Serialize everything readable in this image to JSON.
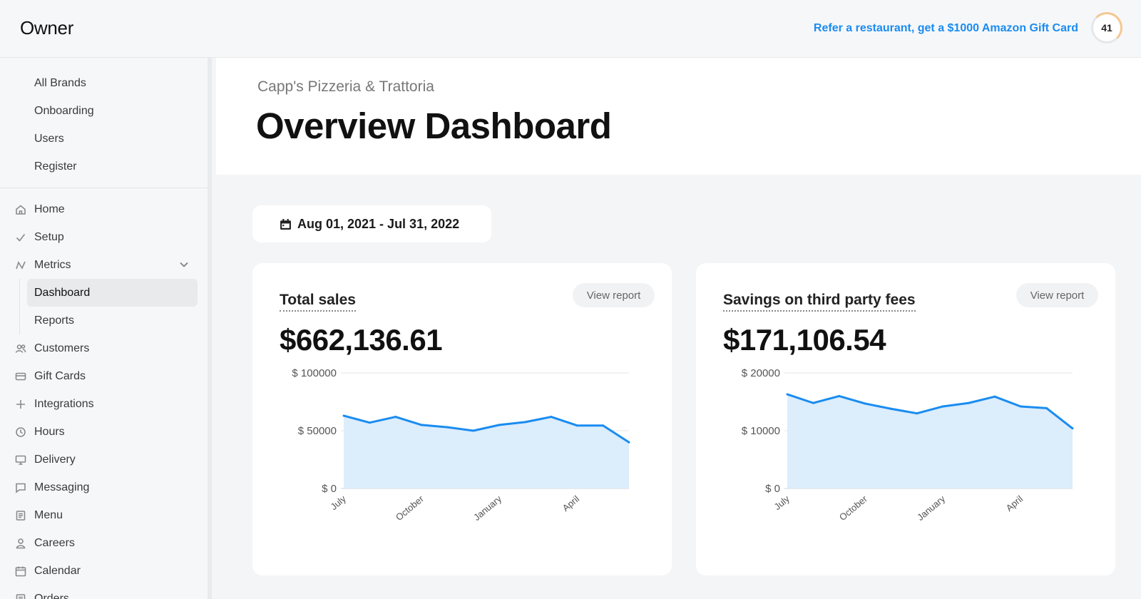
{
  "header": {
    "logo": "Owner",
    "refer_link": "Refer a restaurant, get a $1000 Amazon Gift Card",
    "badge_count": "41"
  },
  "sidebar": {
    "brand_items": [
      "All Brands",
      "Onboarding",
      "Users",
      "Register"
    ],
    "items": [
      {
        "label": "Home",
        "icon": "home-icon"
      },
      {
        "label": "Setup",
        "icon": "check-icon"
      },
      {
        "label": "Metrics",
        "icon": "metrics-icon",
        "expanded": true
      },
      {
        "label": "Dashboard",
        "sub": true,
        "active": true
      },
      {
        "label": "Reports",
        "sub": true
      },
      {
        "label": "Customers",
        "icon": "users-icon"
      },
      {
        "label": "Gift Cards",
        "icon": "credit-card-icon"
      },
      {
        "label": "Integrations",
        "icon": "plus-icon"
      },
      {
        "label": "Hours",
        "icon": "clock-icon"
      },
      {
        "label": "Delivery",
        "icon": "monitor-icon"
      },
      {
        "label": "Messaging",
        "icon": "message-icon"
      },
      {
        "label": "Menu",
        "icon": "menu-doc-icon"
      },
      {
        "label": "Careers",
        "icon": "person-icon"
      },
      {
        "label": "Calendar",
        "icon": "calendar-icon"
      },
      {
        "label": "Orders",
        "icon": "orders-icon"
      }
    ]
  },
  "page": {
    "restaurant": "Capp's Pizzeria & Trattoria",
    "title": "Overview Dashboard",
    "date_range": "Aug 01, 2021 - Jul 31, 2022"
  },
  "cards": [
    {
      "title": "Total sales",
      "value": "$662,136.61",
      "view_report": "View report"
    },
    {
      "title": "Savings on third party fees",
      "value": "$171,106.54",
      "view_report": "View report"
    }
  ],
  "colors": {
    "accent": "#1a8cf0",
    "area_fill": "#dcedfc",
    "line": "#1a8cf0"
  },
  "chart_data": [
    {
      "type": "area",
      "y_ticks": [
        "$ 100000",
        "$ 50000",
        "$ 0"
      ],
      "ylim": [
        0,
        100000
      ],
      "x_tick_labels": [
        "July",
        "October",
        "January",
        "April"
      ],
      "x_tick_indices": [
        0,
        3,
        6,
        9
      ],
      "values": [
        63000,
        57000,
        62000,
        55000,
        53000,
        50000,
        55000,
        57500,
        62000,
        54500,
        54500,
        40000
      ],
      "grid": true
    },
    {
      "type": "area",
      "y_ticks": [
        "$ 20000",
        "$ 10000",
        "$ 0"
      ],
      "ylim": [
        0,
        20000
      ],
      "x_tick_labels": [
        "July",
        "October",
        "January",
        "April"
      ],
      "x_tick_indices": [
        0,
        3,
        6,
        9
      ],
      "values": [
        16300,
        14800,
        16000,
        14700,
        13800,
        13000,
        14200,
        14800,
        15900,
        14200,
        13900,
        10400
      ],
      "grid": true
    }
  ]
}
